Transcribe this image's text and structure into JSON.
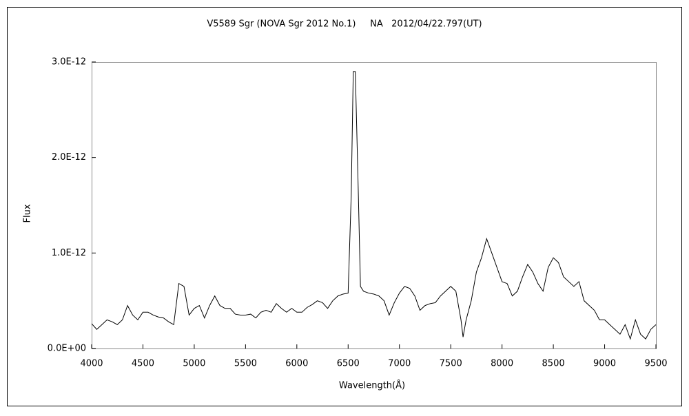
{
  "chart_data": {
    "type": "line",
    "title": "V5589 Sgr (NOVA Sgr 2012 No.1)     NA   2012/04/22.797(UT)",
    "x_label": "Wavelength(Å)",
    "y_label": "Flux",
    "xlim": [
      4000,
      9500
    ],
    "xticks": [
      4000,
      4500,
      5000,
      5500,
      6000,
      6500,
      7000,
      7500,
      8000,
      8500,
      9000,
      9500
    ],
    "ylim": [
      0,
      3e-12
    ],
    "yticks": [
      {
        "value": 0,
        "label": "0.0E+00"
      },
      {
        "value": 1e-12,
        "label": "1.0E-12"
      },
      {
        "value": 2e-12,
        "label": "2.0E-12"
      },
      {
        "value": 3e-12,
        "label": "3.0E-12"
      }
    ],
    "grid": false,
    "series": [
      {
        "color": "#000000",
        "x": [
          4000,
          4050,
          4100,
          4150,
          4200,
          4250,
          4300,
          4350,
          4400,
          4450,
          4500,
          4550,
          4600,
          4650,
          4700,
          4750,
          4800,
          4850,
          4900,
          4950,
          5000,
          5050,
          5100,
          5150,
          5200,
          5250,
          5300,
          5350,
          5400,
          5450,
          5500,
          5550,
          5600,
          5650,
          5700,
          5750,
          5800,
          5850,
          5900,
          5950,
          6000,
          6050,
          6100,
          6150,
          6200,
          6250,
          6300,
          6350,
          6400,
          6450,
          6500,
          6530,
          6550,
          6570,
          6600,
          6620,
          6650,
          6700,
          6750,
          6800,
          6850,
          6900,
          6950,
          7000,
          7050,
          7100,
          7150,
          7200,
          7250,
          7300,
          7350,
          7400,
          7450,
          7500,
          7550,
          7600,
          7620,
          7650,
          7700,
          7750,
          7800,
          7850,
          7900,
          7950,
          8000,
          8050,
          8100,
          8150,
          8200,
          8250,
          8300,
          8350,
          8400,
          8450,
          8500,
          8550,
          8600,
          8650,
          8700,
          8750,
          8800,
          8850,
          8900,
          8950,
          9000,
          9050,
          9100,
          9150,
          9200,
          9250,
          9300,
          9350,
          9400,
          9450,
          9500
        ],
        "values": [
          2.6e-13,
          2e-13,
          2.5e-13,
          3e-13,
          2.8e-13,
          2.5e-13,
          3e-13,
          4.5e-13,
          3.5e-13,
          3e-13,
          3.8e-13,
          3.8e-13,
          3.5e-13,
          3.3e-13,
          3.2e-13,
          2.8e-13,
          2.5e-13,
          6.8e-13,
          6.5e-13,
          3.5e-13,
          4.2e-13,
          4.5e-13,
          3.2e-13,
          4.5e-13,
          5.5e-13,
          4.5e-13,
          4.2e-13,
          4.2e-13,
          3.6e-13,
          3.5e-13,
          3.5e-13,
          3.6e-13,
          3.2e-13,
          3.8e-13,
          4e-13,
          3.8e-13,
          4.7e-13,
          4.2e-13,
          3.8e-13,
          4.2e-13,
          3.8e-13,
          3.8e-13,
          4.3e-13,
          4.6e-13,
          5e-13,
          4.8e-13,
          4.2e-13,
          5e-13,
          5.5e-13,
          5.7e-13,
          5.8e-13,
          1.6e-12,
          2.9e-12,
          2.9e-12,
          1.6e-12,
          6.5e-13,
          6e-13,
          5.8e-13,
          5.7e-13,
          5.5e-13,
          5e-13,
          3.5e-13,
          4.8e-13,
          5.8e-13,
          6.5e-13,
          6.3e-13,
          5.5e-13,
          4e-13,
          4.5e-13,
          4.7e-13,
          4.8e-13,
          5.5e-13,
          6e-13,
          6.5e-13,
          6e-13,
          3e-13,
          1.2e-13,
          3e-13,
          5e-13,
          8e-13,
          9.5e-13,
          1.15e-12,
          1e-12,
          8.5e-13,
          7e-13,
          6.8e-13,
          5.5e-13,
          6e-13,
          7.5e-13,
          8.8e-13,
          8e-13,
          6.8e-13,
          6e-13,
          8.5e-13,
          9.5e-13,
          9e-13,
          7.5e-13,
          7e-13,
          6.5e-13,
          7e-13,
          5e-13,
          4.5e-13,
          4e-13,
          3e-13,
          3e-13,
          2.5e-13,
          2e-13,
          1.5e-13,
          2.5e-13,
          1e-13,
          3e-13,
          1.5e-13,
          1e-13,
          2e-13,
          2.5e-13
        ]
      }
    ]
  }
}
